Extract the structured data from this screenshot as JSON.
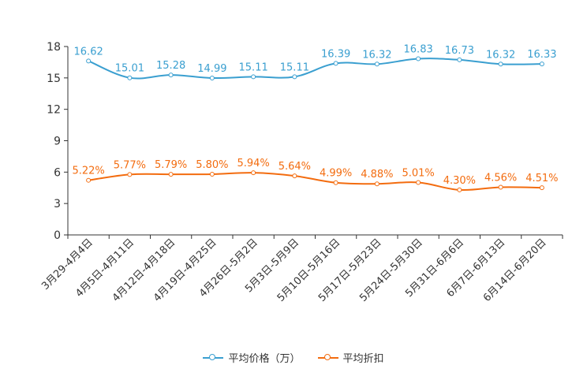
{
  "chart_data": {
    "type": "line",
    "categories": [
      "3月29-4月4日",
      "4月5日-4月11日",
      "4月12日-4月18日",
      "4月19日-4月25日",
      "4月26日-5月2日",
      "5月3日-5月9日",
      "5月10日-5月16日",
      "5月17日-5月23日",
      "5月24日-5月30日",
      "5月31日-6月6日",
      "6月7日-6月13日",
      "6月14日-6月20日"
    ],
    "series": [
      {
        "name": "平均价格（万）",
        "color": "#3a9fd0",
        "values": [
          16.62,
          15.01,
          15.28,
          14.99,
          15.11,
          15.11,
          16.39,
          16.32,
          16.83,
          16.73,
          16.32,
          16.33
        ],
        "labels": [
          "16.62",
          "15.01",
          "15.28",
          "14.99",
          "15.11",
          "15.11",
          "16.39",
          "16.32",
          "16.83",
          "16.73",
          "16.32",
          "16.33"
        ]
      },
      {
        "name": "平均折扣",
        "color": "#f36c0f",
        "values": [
          5.22,
          5.77,
          5.79,
          5.8,
          5.94,
          5.64,
          4.99,
          4.88,
          5.01,
          4.3,
          4.56,
          4.51
        ],
        "labels": [
          "5.22%",
          "5.77%",
          "5.79%",
          "5.80%",
          "5.94%",
          "5.64%",
          "4.99%",
          "4.88%",
          "5.01%",
          "4.30%",
          "4.56%",
          "4.51%"
        ]
      }
    ],
    "ylim": [
      0,
      18
    ],
    "yticks": [
      "0",
      "3",
      "6",
      "9",
      "12",
      "15",
      "18"
    ],
    "xlabel": "",
    "ylabel": "",
    "title": "",
    "legend_position": "bottom-center"
  }
}
